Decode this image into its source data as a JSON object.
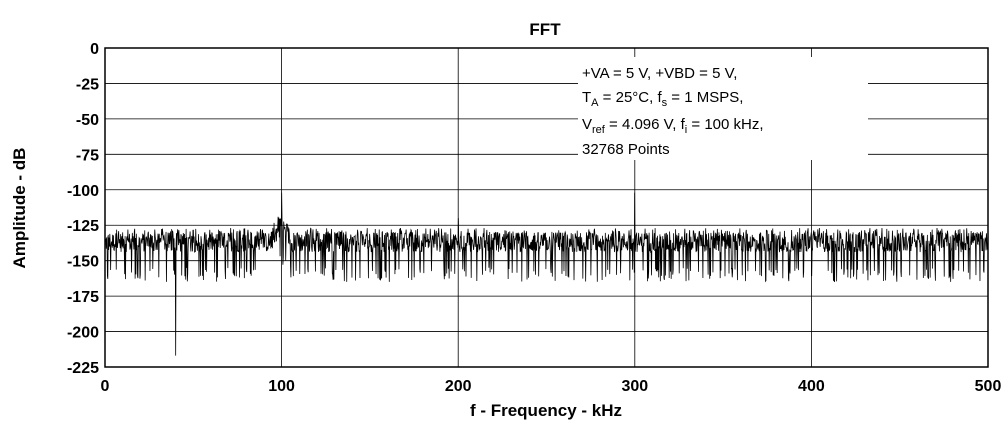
{
  "chart_data": {
    "type": "line",
    "title": "FFT",
    "xlabel": "f - Frequency - kHz",
    "ylabel": "Amplitude - dB",
    "xlim": [
      0,
      500
    ],
    "ylim": [
      -225,
      0
    ],
    "xticks": [
      0,
      100,
      200,
      300,
      400,
      500
    ],
    "yticks": [
      0,
      -25,
      -50,
      -75,
      -100,
      -125,
      -150,
      -175,
      -200,
      -225
    ],
    "grid": true,
    "noise_floor_db": [
      -145,
      -127
    ],
    "peaks": [
      {
        "x": 40,
        "y": -217
      },
      {
        "x": 100,
        "y": -102
      },
      {
        "x": 200,
        "y": -120
      },
      {
        "x": 300,
        "y": -102
      },
      {
        "x": 400,
        "y": -130
      }
    ],
    "annotation": {
      "line1": "+VA = 5 V, +VBD = 5 V,",
      "line2": {
        "a": "T",
        "a_sub": "A",
        "b": " = 25°C, f",
        "b_sub": "s",
        "c": " = 1 MSPS,"
      },
      "line3": {
        "a": "V",
        "a_sub": "ref",
        "b": " = 4.096 V, f",
        "b_sub": "i",
        "c": " = 100 kHz,"
      },
      "line4": "32768 Points"
    },
    "colors": {
      "trace": "#000000",
      "grid": "#000000",
      "background": "#ffffff"
    }
  }
}
